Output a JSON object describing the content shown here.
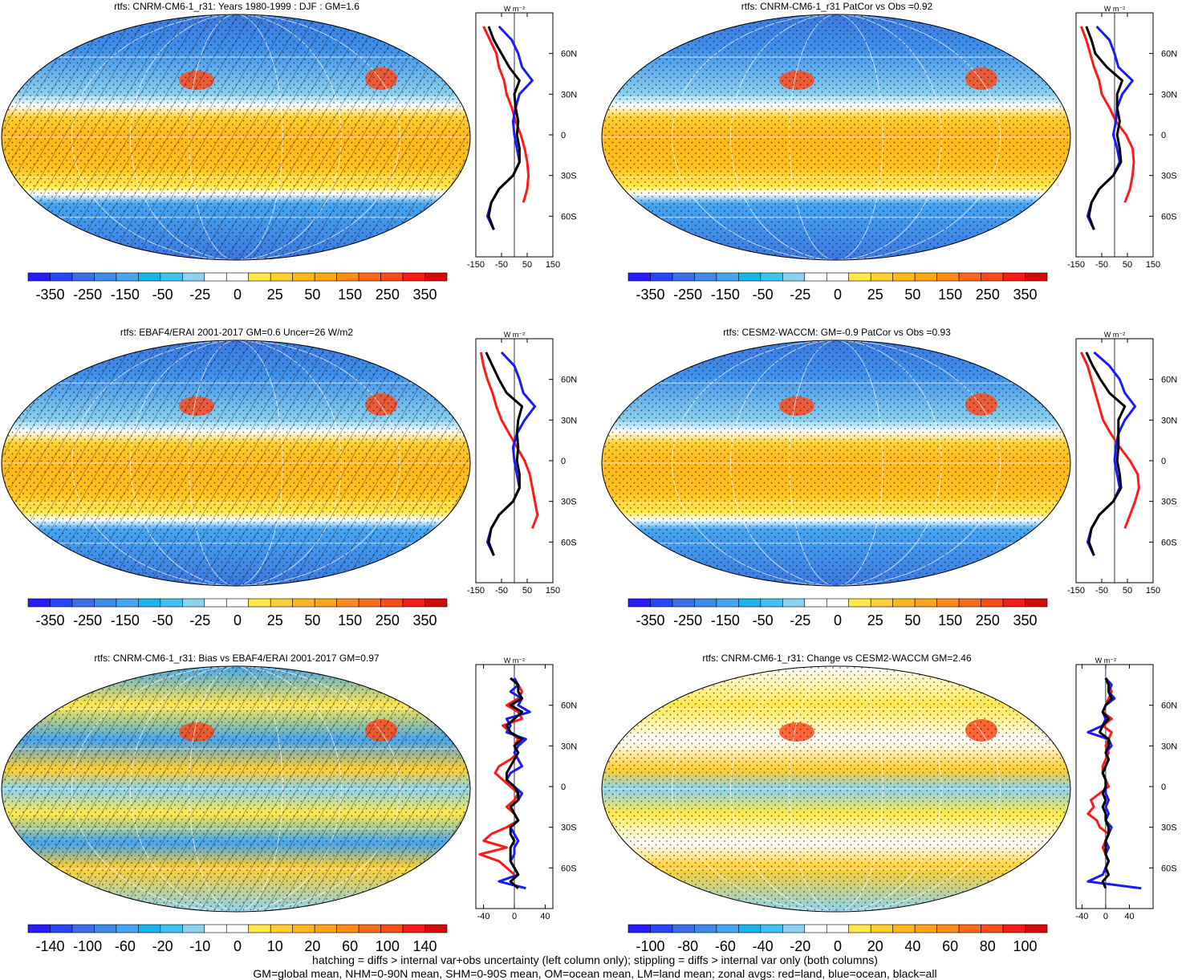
{
  "footer": {
    "line1": "hatching = diffs > internal var+obs uncertainty (left column only); stippling = diffs > internal var only (both columns)",
    "line2": "GM=global mean, NHM=0-90N mean, SHM=0-90S mean, OM=ocean mean, LM=land mean; zonal avgs: red=land, blue=ocean, black=all"
  },
  "colors": {
    "land": "#ff1a1a",
    "ocean": "#1a1aff",
    "all": "#000000",
    "scale": [
      "#2a1aff",
      "#2a45ff",
      "#3c6ee8",
      "#3e8ce8",
      "#46a5f0",
      "#18b4ea",
      "#40c2f0",
      "#8cd2ef",
      "#ffffff",
      "#ffffff",
      "#ffe84a",
      "#ffcf30",
      "#ffb71d",
      "#ffa51a",
      "#ff8c1a",
      "#ff6a1a",
      "#ff4a1a",
      "#ff1a1a",
      "#d40a0a"
    ]
  },
  "chart_data": [
    {
      "type": "heatmap",
      "title": "rtfs: CNRM-CM6-1_r31: Years 1980-1999 : DJF : GM=1.6",
      "colorbar_ticks": [
        "-350",
        "-250",
        "-150",
        "-50",
        "-25",
        "0",
        "25",
        "50",
        "150",
        "250",
        "350"
      ],
      "map_shading": "stippled",
      "hatching": true,
      "zonal": {
        "type": "line",
        "units": "W m⁻²",
        "xlim": [
          -150,
          150
        ],
        "xticks": [
          "-150",
          "-50",
          "50",
          "150"
        ],
        "ylim": [
          -90,
          90
        ],
        "yticks": [
          "60N",
          "30N",
          "0",
          "30S",
          "60S"
        ],
        "lat": [
          80,
          70,
          60,
          50,
          40,
          30,
          20,
          10,
          0,
          -10,
          -20,
          -30,
          -40,
          -50,
          -60,
          -70
        ],
        "series": [
          {
            "name": "land",
            "values": [
              -120,
              -95,
              -70,
              -60,
              -40,
              -30,
              -10,
              5,
              25,
              40,
              50,
              55,
              50,
              35,
              null,
              -40
            ]
          },
          {
            "name": "ocean",
            "values": [
              -60,
              -10,
              15,
              30,
              70,
              20,
              5,
              -5,
              0,
              10,
              20,
              -5,
              -60,
              -90,
              -105,
              -80
            ]
          },
          {
            "name": "all",
            "values": [
              -100,
              -80,
              -50,
              -20,
              20,
              0,
              5,
              15,
              10,
              20,
              20,
              -5,
              -60,
              -90,
              -100,
              -80
            ]
          }
        ]
      }
    },
    {
      "type": "heatmap",
      "title": "rtfs: CNRM-CM6-1_r31 PatCor vs Obs =0.92",
      "colorbar_ticks": [
        "-350",
        "-250",
        "-150",
        "-50",
        "-25",
        "0",
        "25",
        "50",
        "150",
        "250",
        "350"
      ],
      "map_shading": "stippled",
      "hatching": false,
      "zonal": {
        "type": "line",
        "units": "W m⁻²",
        "xlim": [
          -150,
          150
        ],
        "xticks": [
          "-150",
          "-50",
          "50",
          "150"
        ],
        "ylim": [
          -90,
          90
        ],
        "yticks": [
          "60N",
          "30N",
          "0",
          "30S",
          "60S"
        ],
        "lat": [
          80,
          70,
          60,
          50,
          40,
          30,
          20,
          10,
          0,
          -10,
          -20,
          -30,
          -40,
          -50,
          -60,
          -70
        ],
        "series": [
          {
            "name": "land",
            "values": [
              -130,
              -110,
              -95,
              -80,
              -60,
              -50,
              -20,
              5,
              45,
              70,
              75,
              70,
              60,
              40,
              null,
              -40
            ]
          },
          {
            "name": "ocean",
            "values": [
              -70,
              -20,
              0,
              15,
              70,
              30,
              10,
              5,
              -5,
              10,
              20,
              -5,
              -60,
              -90,
              -105,
              -80
            ]
          },
          {
            "name": "all",
            "values": [
              -110,
              -90,
              -75,
              -30,
              30,
              10,
              10,
              20,
              10,
              20,
              25,
              -5,
              -60,
              -90,
              -100,
              -80
            ]
          }
        ]
      }
    },
    {
      "type": "heatmap",
      "title": "rtfs: EBAF4/ERAI 2001-2017 GM=0.6 Uncer=26 W/m2",
      "colorbar_ticks": [
        "-350",
        "-250",
        "-150",
        "-50",
        "-25",
        "0",
        "25",
        "50",
        "150",
        "250",
        "350"
      ],
      "map_shading": "stippled",
      "hatching": true,
      "zonal": {
        "type": "line",
        "units": "W m⁻²",
        "xlim": [
          -150,
          150
        ],
        "xticks": [
          "-150",
          "-50",
          "50",
          "150"
        ],
        "ylim": [
          -90,
          90
        ],
        "yticks": [
          "60N",
          "30N",
          "0",
          "30S",
          "60S"
        ],
        "lat": [
          80,
          70,
          60,
          50,
          40,
          30,
          20,
          10,
          0,
          -10,
          -20,
          -30,
          -40,
          -50,
          -60,
          -70
        ],
        "series": [
          {
            "name": "land",
            "values": [
              -130,
              -120,
              -105,
              -85,
              -70,
              -50,
              -20,
              10,
              40,
              60,
              70,
              80,
              90,
              70,
              null,
              -40
            ]
          },
          {
            "name": "ocean",
            "values": [
              -50,
              0,
              20,
              35,
              80,
              40,
              10,
              -5,
              0,
              10,
              20,
              -5,
              -60,
              -90,
              -105,
              -80
            ]
          },
          {
            "name": "all",
            "values": [
              -110,
              -85,
              -60,
              -30,
              30,
              15,
              10,
              15,
              10,
              20,
              20,
              -5,
              -60,
              -90,
              -100,
              -80
            ]
          }
        ]
      }
    },
    {
      "type": "heatmap",
      "title": "rtfs: CESM2-WACCM: GM=-0.9 PatCor vs Obs =0.93",
      "colorbar_ticks": [
        "-350",
        "-250",
        "-150",
        "-50",
        "-25",
        "0",
        "25",
        "50",
        "150",
        "250",
        "350"
      ],
      "map_shading": "stippled",
      "hatching": false,
      "zonal": {
        "type": "line",
        "units": "W m⁻²",
        "xlim": [
          -150,
          150
        ],
        "xticks": [
          "-150",
          "-50",
          "50",
          "150"
        ],
        "ylim": [
          -90,
          90
        ],
        "yticks": [
          "60N",
          "30N",
          "0",
          "30S",
          "60S"
        ],
        "lat": [
          80,
          70,
          60,
          50,
          40,
          30,
          20,
          10,
          0,
          -10,
          -20,
          -30,
          -40,
          -50,
          -60,
          -70
        ],
        "series": [
          {
            "name": "land",
            "values": [
              -130,
              -105,
              -90,
              -75,
              -60,
              -45,
              -15,
              20,
              60,
              90,
              95,
              80,
              60,
              40,
              null,
              -40
            ]
          },
          {
            "name": "ocean",
            "values": [
              -80,
              -20,
              20,
              40,
              80,
              40,
              15,
              5,
              0,
              10,
              20,
              -5,
              -60,
              -90,
              -105,
              -80
            ]
          },
          {
            "name": "all",
            "values": [
              -110,
              -85,
              -55,
              -20,
              40,
              15,
              15,
              15,
              10,
              20,
              25,
              -5,
              -60,
              -90,
              -100,
              -80
            ]
          }
        ]
      }
    },
    {
      "type": "heatmap",
      "title": "rtfs: CNRM-CM6-1_r31: Bias vs EBAF4/ERAI 2001-2017 GM=0.97",
      "colorbar_ticks": [
        "-140",
        "-100",
        "-60",
        "-20",
        "-10",
        "0",
        "10",
        "20",
        "60",
        "100",
        "140"
      ],
      "map_shading": "stippled",
      "hatching": true,
      "zonal": {
        "type": "line",
        "units": "W m⁻²",
        "xlim": [
          -50,
          50
        ],
        "xticks": [
          "-40",
          "0",
          "40"
        ],
        "ylim": [
          -90,
          90
        ],
        "yticks": [
          "60N",
          "30N",
          "0",
          "30S",
          "60S"
        ],
        "lat": [
          80,
          75,
          70,
          65,
          60,
          55,
          50,
          45,
          40,
          35,
          30,
          25,
          20,
          15,
          10,
          5,
          0,
          -5,
          -10,
          -15,
          -20,
          -25,
          -30,
          -35,
          -40,
          -45,
          -50,
          -55,
          -60,
          -65,
          -70,
          -75
        ],
        "series": [
          {
            "name": "land",
            "values": [
              -5,
              5,
              10,
              5,
              -10,
              5,
              10,
              -15,
              -5,
              5,
              0,
              5,
              -5,
              -20,
              -25,
              -15,
              -5,
              5,
              0,
              -10,
              0,
              5,
              -10,
              -30,
              -40,
              -10,
              -45,
              -20,
              -10,
              0,
              null,
              null
            ]
          },
          {
            "name": "ocean",
            "values": [
              0,
              5,
              -5,
              10,
              5,
              20,
              -10,
              -5,
              -10,
              15,
              5,
              0,
              5,
              10,
              -5,
              -10,
              0,
              10,
              5,
              -5,
              0,
              5,
              -5,
              0,
              5,
              0,
              0,
              -5,
              0,
              5,
              -20,
              15
            ]
          },
          {
            "name": "all",
            "values": [
              -5,
              5,
              5,
              10,
              -5,
              10,
              0,
              -10,
              -5,
              10,
              0,
              5,
              0,
              -5,
              -10,
              -10,
              0,
              5,
              5,
              -5,
              0,
              5,
              -5,
              -5,
              0,
              -5,
              -5,
              -5,
              0,
              5,
              -5,
              5
            ]
          }
        ]
      }
    },
    {
      "type": "heatmap",
      "title": "rtfs: CNRM-CM6-1_r31: Change vs CESM2-WACCM GM=2.46",
      "colorbar_ticks": [
        "-100",
        "-80",
        "-60",
        "-40",
        "-20",
        "0",
        "20",
        "40",
        "60",
        "80",
        "100"
      ],
      "map_shading": "stippled",
      "hatching": false,
      "zonal": {
        "type": "line",
        "units": "W m⁻²",
        "xlim": [
          -50,
          80
        ],
        "xticks": [
          "-40",
          "0",
          "40"
        ],
        "ylim": [
          -90,
          90
        ],
        "yticks": [
          "60N",
          "30N",
          "0",
          "30S",
          "60S"
        ],
        "lat": [
          80,
          75,
          70,
          65,
          60,
          55,
          50,
          45,
          40,
          35,
          30,
          25,
          20,
          15,
          10,
          5,
          0,
          -5,
          -10,
          -15,
          -20,
          -25,
          -30,
          -35,
          -40,
          -45,
          -50,
          -55,
          -60,
          -65,
          -70,
          -75
        ],
        "series": [
          {
            "name": "land",
            "values": [
              0,
              5,
              10,
              5,
              0,
              -5,
              10,
              -5,
              10,
              5,
              0,
              5,
              0,
              -5,
              -5,
              0,
              5,
              -10,
              -25,
              -20,
              -30,
              -15,
              -10,
              5,
              0,
              -5,
              0,
              5,
              0,
              5,
              null,
              null
            ]
          },
          {
            "name": "ocean",
            "values": [
              0,
              10,
              5,
              15,
              0,
              -5,
              0,
              -5,
              -30,
              5,
              10,
              0,
              5,
              0,
              -5,
              0,
              0,
              0,
              5,
              0,
              5,
              0,
              10,
              5,
              0,
              5,
              0,
              5,
              0,
              -5,
              -30,
              60
            ]
          },
          {
            "name": "all",
            "values": [
              0,
              5,
              5,
              10,
              0,
              -5,
              5,
              -5,
              -10,
              5,
              5,
              0,
              5,
              0,
              -5,
              0,
              0,
              -5,
              0,
              -5,
              0,
              0,
              5,
              5,
              0,
              0,
              0,
              5,
              0,
              5,
              -5,
              0
            ]
          }
        ]
      }
    }
  ]
}
